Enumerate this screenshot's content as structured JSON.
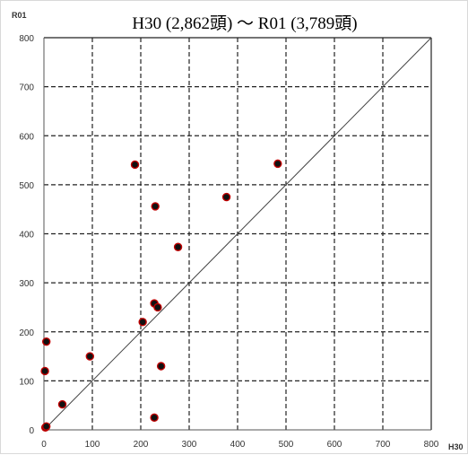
{
  "chart_data": {
    "type": "scatter",
    "title": "H30 (2,862頭) ～ R01 (3,789頭)",
    "xlabel": "H30",
    "ylabel": "R01",
    "xlim": [
      0,
      800
    ],
    "ylim": [
      0,
      800
    ],
    "xticks": [
      0,
      100,
      200,
      300,
      400,
      500,
      600,
      700,
      800
    ],
    "yticks": [
      0,
      100,
      200,
      300,
      400,
      500,
      600,
      700,
      800
    ],
    "grid": "dashed",
    "reference_line": "y = x",
    "marker": {
      "fill": "#111111",
      "edge": "#c00000"
    },
    "points": [
      {
        "x": 3,
        "y": 5
      },
      {
        "x": 5,
        "y": 7
      },
      {
        "x": 38,
        "y": 52
      },
      {
        "x": 2,
        "y": 120
      },
      {
        "x": 5,
        "y": 180
      },
      {
        "x": 95,
        "y": 150
      },
      {
        "x": 188,
        "y": 541
      },
      {
        "x": 230,
        "y": 456
      },
      {
        "x": 377,
        "y": 475
      },
      {
        "x": 483,
        "y": 543
      },
      {
        "x": 277,
        "y": 373
      },
      {
        "x": 228,
        "y": 258
      },
      {
        "x": 235,
        "y": 250
      },
      {
        "x": 204,
        "y": 220
      },
      {
        "x": 242,
        "y": 130
      },
      {
        "x": 228,
        "y": 25
      }
    ]
  }
}
